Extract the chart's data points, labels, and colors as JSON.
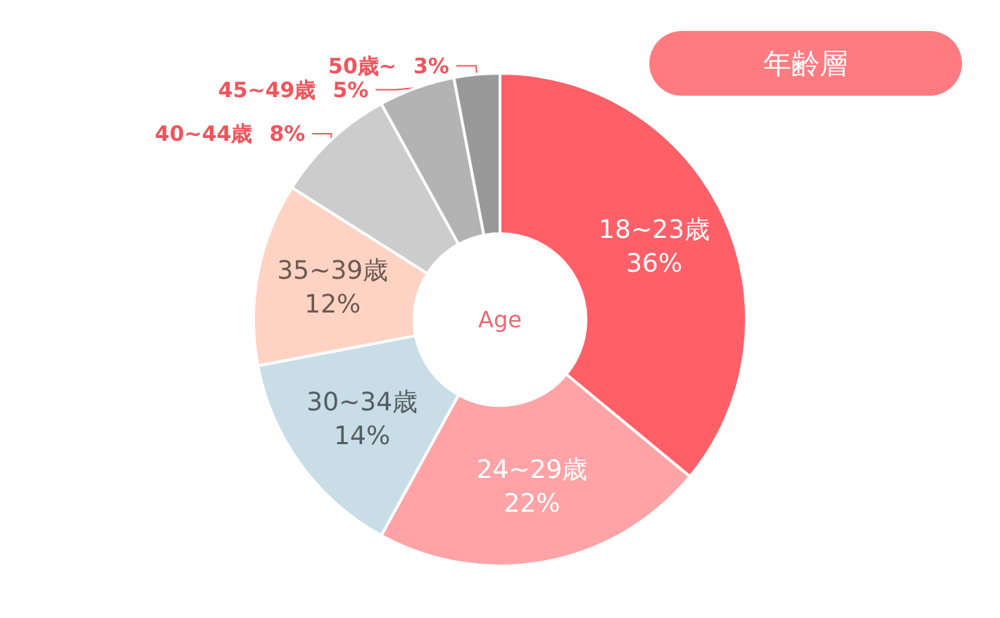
{
  "chart_data": {
    "type": "donut",
    "title": "年齢層",
    "annotations": [
      "Age"
    ],
    "categories": [
      "18~23歳",
      "24~29歳",
      "30~34歳",
      "35~39歳",
      "40~44歳",
      "45~49歳",
      "50歳~"
    ],
    "values": [
      36,
      22,
      14,
      12,
      8,
      5,
      3
    ],
    "value_labels": [
      "36%",
      "22%",
      "14%",
      "12%",
      "8%",
      "5%",
      "3%"
    ],
    "colors": [
      "#ff5f67",
      "#ffa3a6",
      "#c8dde6",
      "#ffd3c4",
      "#cccccc",
      "#b3b3b3",
      "#999999"
    ]
  }
}
